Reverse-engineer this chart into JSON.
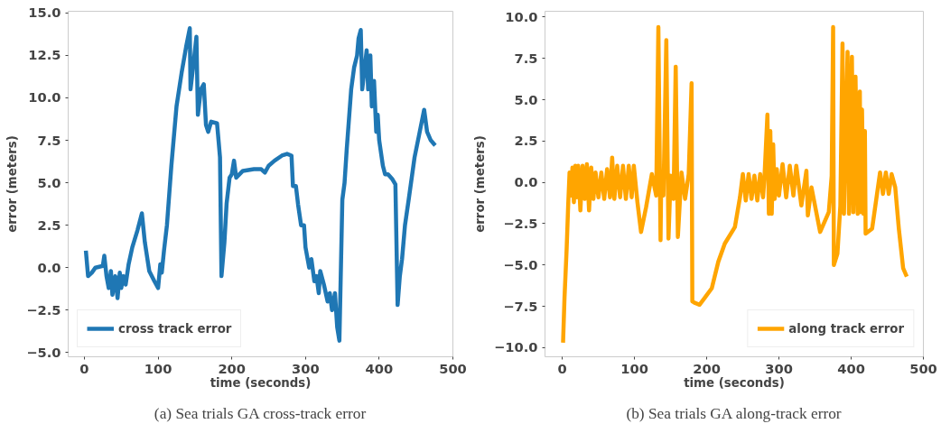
{
  "chart_data": [
    {
      "type": "line",
      "xlabel": "time (seconds)",
      "ylabel": "error (meters)",
      "annotations": [
        "(a) Sea trials GA cross-track error"
      ],
      "xlim": [
        -22,
        500
      ],
      "ylim": [
        -5.25,
        15.1
      ],
      "xticks": [
        0,
        100,
        200,
        300,
        400,
        500
      ],
      "yticks": [
        {
          "value": -5,
          "label": "−5.0"
        },
        {
          "value": -2.5,
          "label": "−2.5"
        },
        {
          "value": 0,
          "label": "0.0"
        },
        {
          "value": 2.5,
          "label": "2.5"
        },
        {
          "value": 5,
          "label": "5.0"
        },
        {
          "value": 7.5,
          "label": "7.5"
        },
        {
          "value": 10,
          "label": "10.0"
        },
        {
          "value": 12.5,
          "label": "12.5"
        },
        {
          "value": 15,
          "label": "15.0"
        }
      ],
      "grid": false,
      "legend": "bottom left",
      "line_style": "solid",
      "series": [
        {
          "name": "cross track error",
          "color": "#1f77b4",
          "x": [
            2,
            5,
            10,
            15,
            25,
            27,
            30,
            33,
            36,
            38,
            42,
            45,
            48,
            50,
            53,
            56,
            60,
            65,
            72,
            78,
            82,
            88,
            95,
            100,
            103,
            105,
            108,
            112,
            118,
            125,
            132,
            138,
            143,
            144,
            148,
            152,
            154,
            158,
            162,
            165,
            168,
            172,
            180,
            182,
            184,
            186,
            190,
            193,
            197,
            200,
            203,
            206,
            215,
            230,
            240,
            245,
            250,
            258,
            268,
            275,
            281,
            283,
            287,
            290,
            294,
            298,
            300,
            305,
            308,
            312,
            315,
            318,
            320,
            325,
            330,
            333,
            336,
            340,
            343,
            346,
            350,
            353,
            356,
            362,
            366,
            370,
            372,
            375,
            377,
            383,
            385,
            388,
            390,
            393,
            396,
            398,
            400,
            405,
            408,
            412,
            418,
            422,
            425,
            428,
            431,
            435,
            440,
            448,
            455,
            461,
            465,
            470,
            476
          ],
          "values": [
            1.0,
            -0.5,
            -0.3,
            0.0,
            0.1,
            0.7,
            -0.5,
            -1.2,
            -0.2,
            -1.6,
            -0.5,
            -1.8,
            -0.3,
            -1.2,
            -0.5,
            -1.0,
            0.2,
            1.2,
            2.2,
            3.2,
            1.5,
            -0.2,
            -0.8,
            -1.2,
            0.2,
            -0.3,
            1.0,
            2.5,
            6.0,
            9.5,
            11.5,
            13.0,
            14.1,
            10.5,
            12.0,
            13.6,
            9.0,
            10.5,
            10.8,
            8.4,
            8.0,
            8.6,
            8.5,
            7.5,
            6.5,
            -0.5,
            1.5,
            3.8,
            5.3,
            5.5,
            6.3,
            5.3,
            5.7,
            5.8,
            5.8,
            5.6,
            6.0,
            6.3,
            6.6,
            6.7,
            6.6,
            4.8,
            4.8,
            3.7,
            2.5,
            2.5,
            1.2,
            0.0,
            0.5,
            -0.8,
            -0.5,
            -1.5,
            -0.2,
            -1.0,
            -2.0,
            -1.5,
            -2.5,
            -1.5,
            -3.5,
            -4.3,
            4.0,
            5.0,
            7.0,
            10.5,
            11.8,
            12.5,
            13.5,
            14.0,
            10.5,
            12.8,
            10.5,
            12.5,
            9.5,
            11.0,
            8.0,
            9.0,
            7.5,
            6.0,
            5.5,
            5.5,
            5.2,
            4.9,
            -2.2,
            -0.5,
            0.5,
            2.5,
            4.0,
            6.5,
            8.0,
            9.3,
            8.0,
            7.5,
            7.2
          ]
        }
      ]
    },
    {
      "type": "line",
      "xlabel": "time (seconds)",
      "ylabel": "error (meters)",
      "annotations": [
        "(b) Sea trials GA along-track error"
      ],
      "xlim": [
        -24,
        500
      ],
      "ylim": [
        -10.55,
        10.35
      ],
      "xticks": [
        0,
        100,
        200,
        300,
        400,
        500
      ],
      "yticks": [
        {
          "value": -10,
          "label": "−10.0"
        },
        {
          "value": -7.5,
          "label": "−7.5"
        },
        {
          "value": -5,
          "label": "−5.0"
        },
        {
          "value": -2.5,
          "label": "−2.5"
        },
        {
          "value": 0,
          "label": "0.0"
        },
        {
          "value": 2.5,
          "label": "2.5"
        },
        {
          "value": 5,
          "label": "5.0"
        },
        {
          "value": 7.5,
          "label": "7.5"
        },
        {
          "value": 10,
          "label": "10.0"
        }
      ],
      "grid": false,
      "legend": "bottom right",
      "line_style": "solid",
      "series": [
        {
          "name": "along track error",
          "color": "#ffa500",
          "x": [
            1,
            3,
            6,
            8,
            10,
            12,
            14,
            16,
            18,
            20,
            22,
            25,
            28,
            31,
            34,
            37,
            40,
            43,
            46,
            50,
            54,
            58,
            62,
            66,
            69,
            72,
            76,
            80,
            84,
            88,
            92,
            96,
            99,
            104,
            109,
            116,
            124,
            130,
            133,
            136,
            137,
            140,
            144,
            147,
            150,
            154,
            157,
            160,
            165,
            170,
            175,
            179,
            180,
            184,
            190,
            197,
            207,
            216,
            225,
            239,
            246,
            250,
            254,
            258,
            262,
            266,
            270,
            274,
            278,
            280,
            284,
            286,
            288,
            290,
            292,
            294,
            297,
            300,
            305,
            310,
            315,
            320,
            324,
            331,
            338,
            340,
            345,
            357,
            369,
            373,
            375,
            376,
            381,
            385,
            388,
            390,
            395,
            397,
            401,
            403,
            406,
            409,
            412,
            413,
            415,
            417,
            419,
            420,
            429,
            440,
            444,
            448,
            452,
            456,
            461,
            466,
            472,
            477
          ],
          "values": [
            -9.7,
            -7.0,
            -4.0,
            -1.5,
            0.6,
            -0.8,
            0.9,
            -1.2,
            1.0,
            -0.9,
            1.0,
            -1.7,
            1.0,
            -1.0,
            1.1,
            -1.7,
            0.9,
            -1.0,
            0.6,
            -0.9,
            0.6,
            -1.0,
            0.8,
            -0.9,
            1.5,
            -1.0,
            1.0,
            -0.9,
            1.0,
            -1.0,
            1.0,
            -0.9,
            1.0,
            -1.2,
            -3.0,
            -1.5,
            0.5,
            -0.8,
            9.4,
            -3.5,
            0.4,
            -0.8,
            8.6,
            -3.4,
            0.4,
            -1.0,
            7.0,
            -3.3,
            0.6,
            -1.0,
            0.5,
            6.0,
            -7.2,
            -7.3,
            -7.4,
            -7.0,
            -6.4,
            -4.8,
            -3.7,
            -2.7,
            -0.9,
            0.5,
            -1.1,
            0.5,
            -1.0,
            0.4,
            -1.1,
            0.5,
            -0.9,
            0.4,
            4.1,
            -1.9,
            3.1,
            -1.9,
            2.3,
            -1.0,
            0.8,
            -0.8,
            1.1,
            -0.9,
            1.0,
            -0.8,
            1.0,
            -1.4,
            0.7,
            -2.0,
            -0.3,
            -3.0,
            -1.8,
            0.4,
            9.4,
            -5.0,
            -4.3,
            -1.4,
            8.4,
            -1.9,
            7.9,
            -1.9,
            7.6,
            -1.8,
            6.4,
            -1.9,
            5.5,
            -1.8,
            4.4,
            -1.9,
            3.1,
            -3.1,
            -2.8,
            0.6,
            -0.7,
            0.6,
            -0.7,
            0.5,
            -0.3,
            -2.8,
            -5.2,
            -5.7
          ]
        }
      ]
    }
  ]
}
